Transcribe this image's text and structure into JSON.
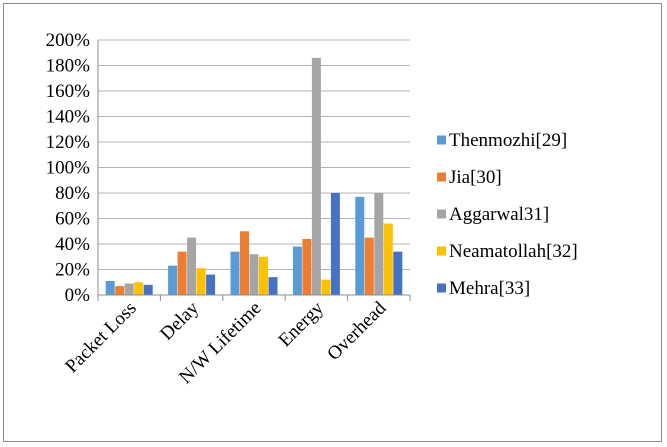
{
  "chart_data": {
    "type": "bar",
    "title": "",
    "xlabel": "",
    "ylabel": "",
    "categories": [
      "Packet Loss",
      "Delay",
      "N/W Lifetime",
      "Energy",
      "Overhead"
    ],
    "ylim": [
      0,
      200
    ],
    "yticks": [
      "0%",
      "20%",
      "40%",
      "60%",
      "80%",
      "100%",
      "120%",
      "140%",
      "160%",
      "180%",
      "200%"
    ],
    "grid": true,
    "legend_position": "right",
    "series": [
      {
        "name": "Thenmozhi[29]",
        "color": "#5b9bd5",
        "values": [
          11,
          23,
          34,
          38,
          77
        ]
      },
      {
        "name": "Jia[30]",
        "color": "#ed7d31",
        "values": [
          7,
          34,
          50,
          44,
          45
        ]
      },
      {
        "name": "Aggarwal31]",
        "color": "#a5a5a5",
        "values": [
          9,
          45,
          32,
          186,
          80
        ]
      },
      {
        "name": "Neamatollah[32]",
        "color": "#ffc000",
        "values": [
          10,
          21,
          30,
          12,
          56
        ]
      },
      {
        "name": "Mehra[33]",
        "color": "#4472c4",
        "values": [
          8,
          16,
          14,
          80,
          34
        ]
      }
    ]
  }
}
